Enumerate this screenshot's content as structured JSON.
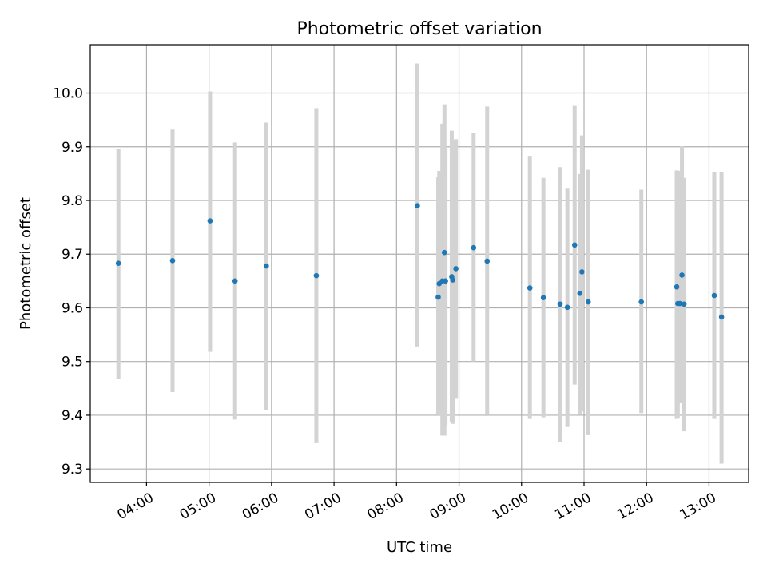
{
  "chart_data": {
    "type": "scatter",
    "title": "Photometric offset variation",
    "xlabel": "UTC time",
    "ylabel": "Photometric offset",
    "x_ticks": [
      "04:00",
      "05:00",
      "06:00",
      "07:00",
      "08:00",
      "09:00",
      "10:00",
      "11:00",
      "12:00",
      "13:00"
    ],
    "y_ticks": [
      "9.3",
      "9.4",
      "9.5",
      "9.6",
      "9.7",
      "9.8",
      "9.9",
      "10.0"
    ],
    "xlim": [
      "03:06",
      "13:38"
    ],
    "ylim": [
      9.275,
      10.09
    ],
    "grid": true,
    "colors": {
      "point": "#1f77b4",
      "errorbar": "#d3d3d3"
    },
    "series": [
      {
        "x": [
          "03:33",
          "04:25",
          "05:01",
          "05:25",
          "05:55",
          "06:43",
          "08:20",
          "08:40",
          "08:41",
          "08:44",
          "08:46",
          "08:47",
          "08:53",
          "08:54",
          "08:57",
          "09:14",
          "09:27",
          "10:08",
          "10:21",
          "10:37",
          "10:44",
          "10:51",
          "10:56",
          "10:58",
          "11:04",
          "11:55",
          "12:29",
          "12:30",
          "12:32",
          "12:34",
          "12:36",
          "13:05",
          "13:12"
        ],
        "y": [
          9.683,
          9.688,
          9.762,
          9.65,
          9.678,
          9.66,
          9.79,
          9.62,
          9.645,
          9.65,
          9.703,
          9.65,
          9.658,
          9.652,
          9.673,
          9.712,
          9.687,
          9.637,
          9.619,
          9.607,
          9.601,
          9.717,
          9.627,
          9.667,
          9.611,
          9.611,
          9.639,
          9.608,
          9.608,
          9.661,
          9.607,
          9.623,
          9.583
        ],
        "yerr_low": [
          9.467,
          9.443,
          9.518,
          9.392,
          9.409,
          9.348,
          9.528,
          9.401,
          9.4,
          9.362,
          9.362,
          9.382,
          9.387,
          9.384,
          9.432,
          9.5,
          9.401,
          9.393,
          9.396,
          9.35,
          9.378,
          9.457,
          9.401,
          9.407,
          9.363,
          9.404,
          9.393,
          9.395,
          9.423,
          9.437,
          9.37,
          9.393,
          9.31
        ],
        "yerr_high": [
          9.896,
          9.932,
          10.003,
          9.908,
          9.945,
          9.972,
          10.055,
          9.843,
          9.855,
          9.943,
          9.979,
          9.9,
          9.93,
          9.91,
          9.914,
          9.925,
          9.975,
          9.883,
          9.842,
          9.862,
          9.822,
          9.976,
          9.849,
          9.921,
          9.857,
          9.82,
          9.856,
          9.82,
          9.855,
          9.901,
          9.842,
          9.853,
          9.853
        ]
      }
    ]
  }
}
